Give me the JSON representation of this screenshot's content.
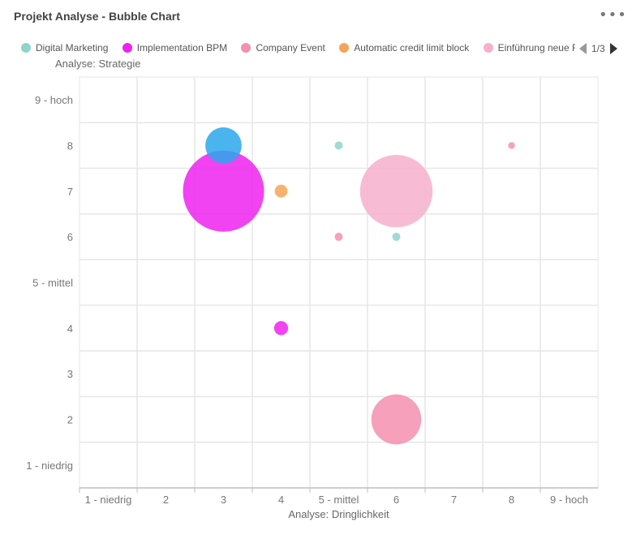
{
  "header": {
    "title": "Projekt Analyse - Bubble Chart"
  },
  "legend": {
    "items": [
      {
        "label": "Digital Marketing",
        "color": "#8fd3cc"
      },
      {
        "label": "Implementation BPM",
        "color": "#ee22ee"
      },
      {
        "label": "Company Event",
        "color": "#f48fb0"
      },
      {
        "label": "Automatic credit limit block",
        "color": "#f6a556"
      },
      {
        "label": "Einführung neue F",
        "color": "#f6b0cc"
      }
    ],
    "page": "1/3"
  },
  "chart_data": {
    "type": "scatter",
    "bubble": true,
    "xlabel": "Analyse: Dringlichkeit",
    "ylabel": "Analyse: Strategie",
    "xlim": [
      0.5,
      9.5
    ],
    "ylim": [
      0.5,
      9.5
    ],
    "x_ticks": [
      {
        "value": 1,
        "label": "1 - niedrig"
      },
      {
        "value": 2,
        "label": "2"
      },
      {
        "value": 3,
        "label": "3"
      },
      {
        "value": 4,
        "label": "4"
      },
      {
        "value": 5,
        "label": "5 - mittel"
      },
      {
        "value": 6,
        "label": "6"
      },
      {
        "value": 7,
        "label": "7"
      },
      {
        "value": 8,
        "label": "8"
      },
      {
        "value": 9,
        "label": "9 - hoch"
      }
    ],
    "y_ticks": [
      {
        "value": 1,
        "label": "1 - niedrig"
      },
      {
        "value": 2,
        "label": "2"
      },
      {
        "value": 3,
        "label": "3"
      },
      {
        "value": 4,
        "label": "4"
      },
      {
        "value": 5,
        "label": "5 - mittel"
      },
      {
        "value": 6,
        "label": "6"
      },
      {
        "value": 7,
        "label": "7"
      },
      {
        "value": 8,
        "label": "8"
      },
      {
        "value": 9,
        "label": "9 - hoch"
      }
    ],
    "grid": true,
    "legend_position": "top",
    "bubbles": [
      {
        "x": 3,
        "y": 8,
        "size": 2,
        "color": "#2aa7ec"
      },
      {
        "x": 3,
        "y": 7,
        "size": 10,
        "color": "#ee22ee"
      },
      {
        "x": 4,
        "y": 7,
        "size": 0.25,
        "color": "#f6a556"
      },
      {
        "x": 4,
        "y": 4,
        "size": 0.3,
        "color": "#ee22ee"
      },
      {
        "x": 5,
        "y": 8,
        "size": 0.1,
        "color": "#8fd3cc"
      },
      {
        "x": 5,
        "y": 6,
        "size": 0.1,
        "color": "#f48fb0"
      },
      {
        "x": 6,
        "y": 7,
        "size": 8,
        "color": "#f6b0cc"
      },
      {
        "x": 6,
        "y": 6,
        "size": 0.1,
        "color": "#8fd3cc"
      },
      {
        "x": 6,
        "y": 2,
        "size": 3.8,
        "color": "#f48fb0"
      },
      {
        "x": 8,
        "y": 8,
        "size": 0.07,
        "color": "#f48fb0"
      }
    ]
  }
}
